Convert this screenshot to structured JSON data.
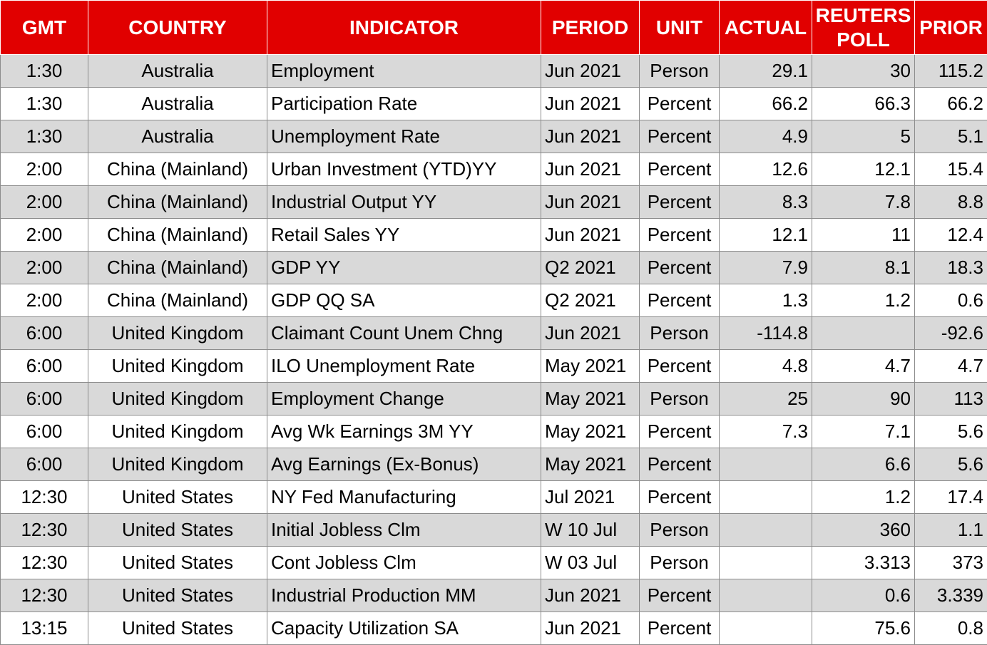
{
  "table": {
    "headers": [
      "GMT",
      "COUNTRY",
      "INDICATOR",
      "PERIOD",
      "UNIT",
      "ACTUAL",
      "REUTERS POLL",
      "PRIOR"
    ],
    "header_color": "#e10000",
    "stripe_color": "#d9d9d9",
    "rows": [
      {
        "gmt": "1:30",
        "country": "Australia",
        "indicator": "Employment",
        "period": "Jun 2021",
        "unit": "Person",
        "actual": "29.1",
        "poll": "30",
        "prior": "115.2"
      },
      {
        "gmt": "1:30",
        "country": "Australia",
        "indicator": "Participation Rate",
        "period": "Jun 2021",
        "unit": "Percent",
        "actual": "66.2",
        "poll": "66.3",
        "prior": "66.2"
      },
      {
        "gmt": "1:30",
        "country": "Australia",
        "indicator": "Unemployment Rate",
        "period": "Jun 2021",
        "unit": "Percent",
        "actual": "4.9",
        "poll": "5",
        "prior": "5.1"
      },
      {
        "gmt": "2:00",
        "country": "China (Mainland)",
        "indicator": "Urban Investment (YTD)YY",
        "period": "Jun 2021",
        "unit": "Percent",
        "actual": "12.6",
        "poll": "12.1",
        "prior": "15.4"
      },
      {
        "gmt": "2:00",
        "country": "China (Mainland)",
        "indicator": "Industrial Output YY",
        "period": "Jun 2021",
        "unit": "Percent",
        "actual": "8.3",
        "poll": "7.8",
        "prior": "8.8"
      },
      {
        "gmt": "2:00",
        "country": "China (Mainland)",
        "indicator": "Retail Sales YY",
        "period": "Jun 2021",
        "unit": "Percent",
        "actual": "12.1",
        "poll": "11",
        "prior": "12.4"
      },
      {
        "gmt": "2:00",
        "country": "China (Mainland)",
        "indicator": "GDP YY",
        "period": "Q2 2021",
        "unit": "Percent",
        "actual": "7.9",
        "poll": "8.1",
        "prior": "18.3"
      },
      {
        "gmt": "2:00",
        "country": "China (Mainland)",
        "indicator": "GDP QQ SA",
        "period": "Q2 2021",
        "unit": "Percent",
        "actual": "1.3",
        "poll": "1.2",
        "prior": "0.6"
      },
      {
        "gmt": "6:00",
        "country": "United Kingdom",
        "indicator": "Claimant Count Unem Chng",
        "period": "Jun 2021",
        "unit": "Person",
        "actual": "-114.8",
        "poll": "",
        "prior": "-92.6"
      },
      {
        "gmt": "6:00",
        "country": "United Kingdom",
        "indicator": "ILO Unemployment Rate",
        "period": "May 2021",
        "unit": "Percent",
        "actual": "4.8",
        "poll": "4.7",
        "prior": "4.7"
      },
      {
        "gmt": "6:00",
        "country": "United Kingdom",
        "indicator": "Employment Change",
        "period": "May 2021",
        "unit": "Person",
        "actual": "25",
        "poll": "90",
        "prior": "113"
      },
      {
        "gmt": "6:00",
        "country": "United Kingdom",
        "indicator": "Avg Wk Earnings 3M YY",
        "period": "May 2021",
        "unit": "Percent",
        "actual": "7.3",
        "poll": "7.1",
        "prior": "5.6"
      },
      {
        "gmt": "6:00",
        "country": "United Kingdom",
        "indicator": "Avg Earnings (Ex-Bonus)",
        "period": "May 2021",
        "unit": "Percent",
        "actual": "",
        "poll": "6.6",
        "prior": "5.6"
      },
      {
        "gmt": "12:30",
        "country": "United States",
        "indicator": "NY Fed Manufacturing",
        "period": "Jul 2021",
        "unit": "Percent",
        "actual": "",
        "poll": "1.2",
        "prior": "17.4"
      },
      {
        "gmt": "12:30",
        "country": "United States",
        "indicator": "Initial Jobless Clm",
        "period": "W 10 Jul",
        "unit": "Person",
        "actual": "",
        "poll": "360",
        "prior": "1.1"
      },
      {
        "gmt": "12:30",
        "country": "United States",
        "indicator": "Cont Jobless Clm",
        "period": "W 03 Jul",
        "unit": "Person",
        "actual": "",
        "poll": "3.313",
        "prior": "373"
      },
      {
        "gmt": "12:30",
        "country": "United States",
        "indicator": "Industrial Production MM",
        "period": "Jun 2021",
        "unit": "Percent",
        "actual": "",
        "poll": "0.6",
        "prior": "3.339"
      },
      {
        "gmt": "13:15",
        "country": "United States",
        "indicator": "Capacity Utilization SA",
        "period": "Jun 2021",
        "unit": "Percent",
        "actual": "",
        "poll": "75.6",
        "prior": "0.8"
      }
    ]
  }
}
